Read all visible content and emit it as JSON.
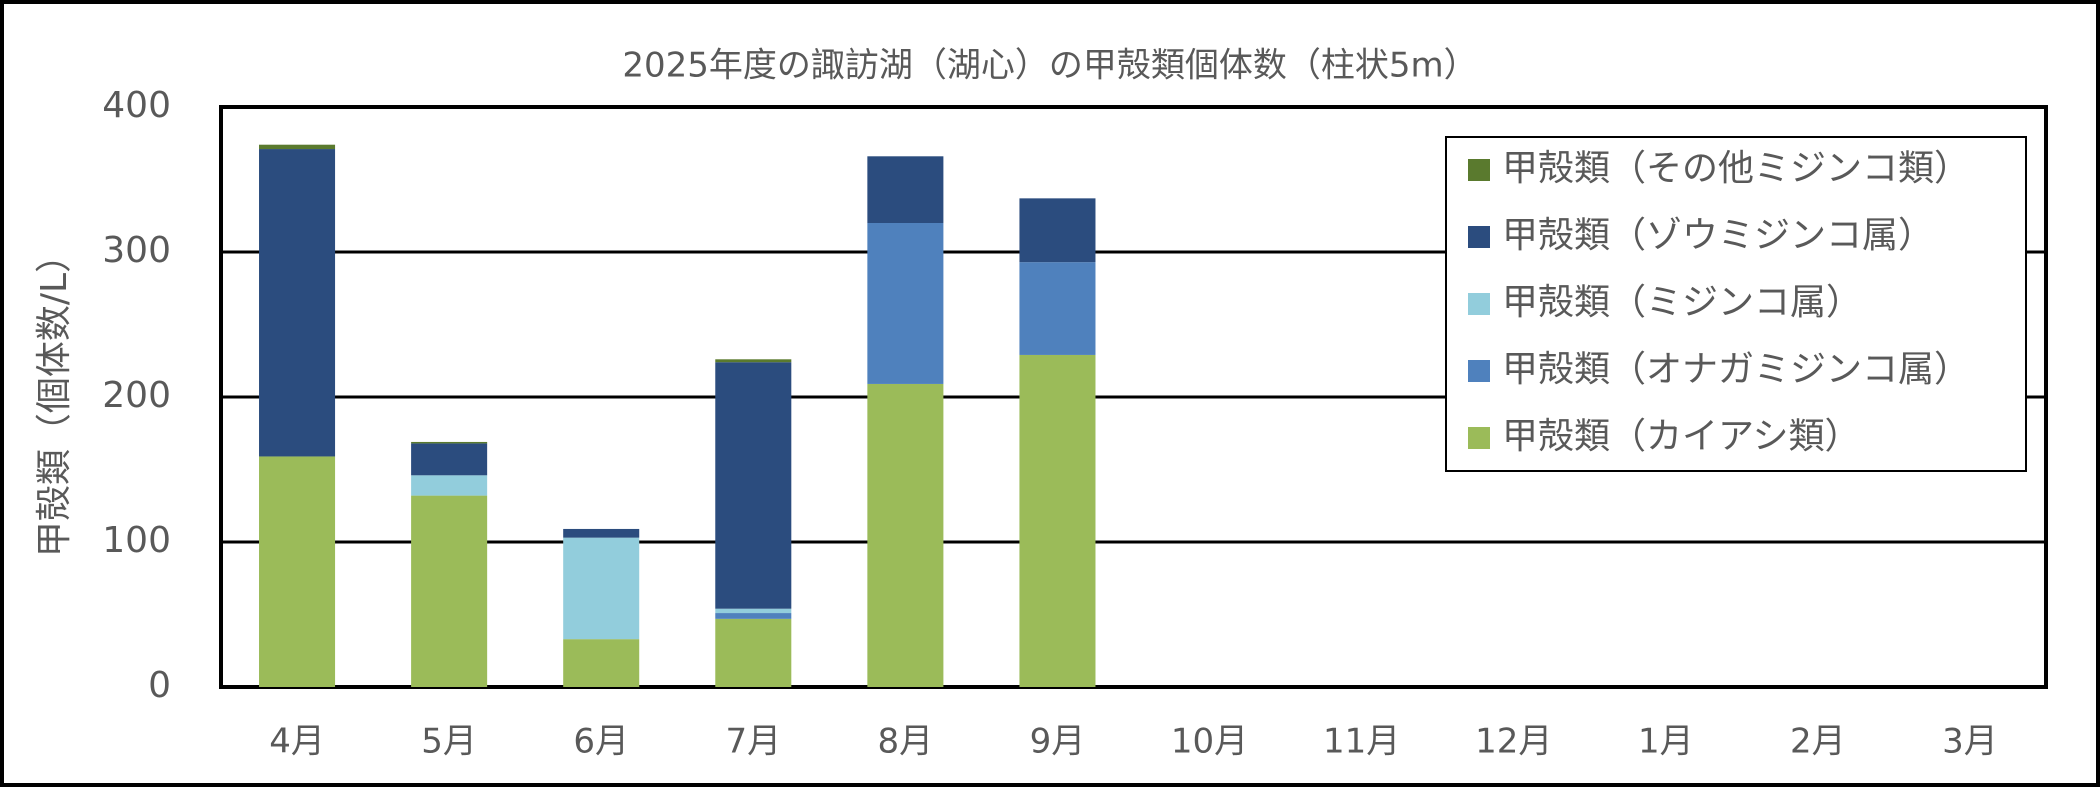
{
  "chart_data": {
    "type": "stacked-bar",
    "title": "2025年度の諏訪湖（湖心）の甲殻類個体数（柱状5m）",
    "y_label": "甲殻類（個体数/L）",
    "categories": [
      "4月",
      "5月",
      "6月",
      "7月",
      "8月",
      "9月",
      "10月",
      "11月",
      "12月",
      "1月",
      "2月",
      "3月"
    ],
    "series": [
      {
        "name": "甲殻類（カイアシ類）",
        "color": "#9bbb59",
        "values": [
          159,
          132,
          33,
          47,
          209,
          229,
          null,
          null,
          null,
          null,
          null,
          null
        ]
      },
      {
        "name": "甲殻類（オナガミジンコ属）",
        "color": "#4f81bd",
        "values": [
          0,
          0,
          0,
          4,
          111,
          64,
          null,
          null,
          null,
          null,
          null,
          null
        ]
      },
      {
        "name": "甲殻類（ミジンコ属）",
        "color": "#92cddc",
        "values": [
          0,
          14,
          70,
          3,
          0,
          0,
          null,
          null,
          null,
          null,
          null,
          null
        ]
      },
      {
        "name": "甲殻類（ゾウミジンコ属）",
        "color": "#2b4c7e",
        "values": [
          212,
          22,
          6,
          170,
          46,
          44,
          null,
          null,
          null,
          null,
          null,
          null
        ]
      },
      {
        "name": "甲殻類（その他ミジンコ類）",
        "color": "#5a7a2e",
        "values": [
          3,
          1,
          0,
          2,
          0,
          0,
          null,
          null,
          null,
          null,
          null,
          null
        ]
      }
    ],
    "ylim": [
      0,
      400
    ],
    "yticks": [
      0,
      100,
      200,
      300,
      400
    ],
    "grid": true,
    "legend": "top-right"
  }
}
